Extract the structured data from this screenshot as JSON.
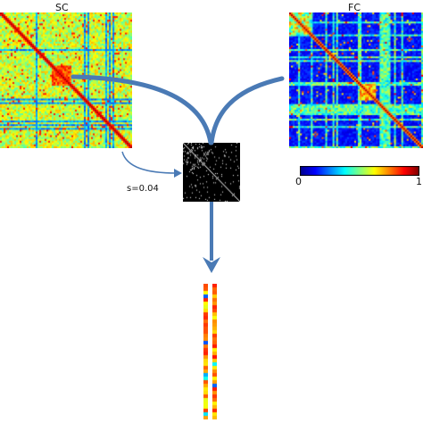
{
  "labels": {
    "sc": "SC",
    "fc": "FC",
    "sparsity": "s=0.04",
    "colorbar_min": "0",
    "colorbar_max": "1"
  },
  "colormap": [
    "#00008f",
    "#0000ff",
    "#0080ff",
    "#00ffff",
    "#80ff80",
    "#ffff00",
    "#ff8000",
    "#ff0000",
    "#800000"
  ],
  "colors": {
    "arrow": "#4a7ab5",
    "binary_bg": "#000000",
    "binary_fg": "#ffffff"
  }
}
